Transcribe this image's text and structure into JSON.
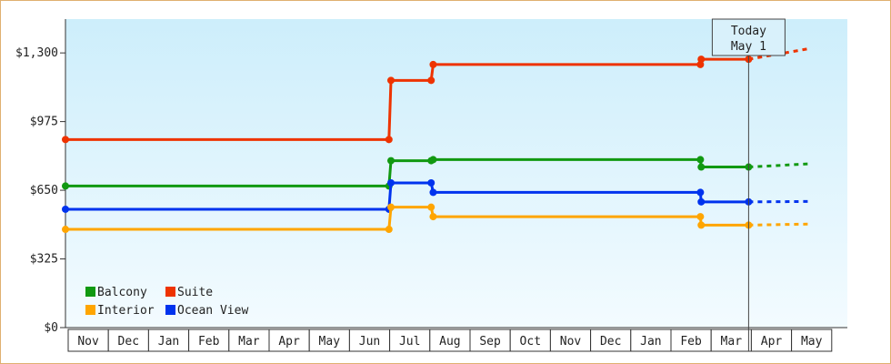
{
  "chart_data": {
    "type": "line",
    "step": true,
    "yticks": [
      0,
      325,
      650,
      975,
      1300
    ],
    "ytick_labels": [
      "$0",
      "$325",
      "$650",
      "$975",
      "$1,300"
    ],
    "ylim": [
      0,
      1460
    ],
    "x_categories": [
      "Nov",
      "Dec",
      "Jan",
      "Feb",
      "Mar",
      "Apr",
      "May",
      "Jun",
      "Jul",
      "Aug",
      "Sep",
      "Oct",
      "Nov",
      "Dec",
      "Jan",
      "Feb",
      "Mar",
      "Apr",
      "May"
    ],
    "today_label": [
      "Today",
      "May 1"
    ],
    "today_x": 17.0,
    "legend_position": "bottom-left",
    "grid": false,
    "series": [
      {
        "name": "Suite",
        "color": "#ee3300",
        "points": [
          [
            0,
            890
          ],
          [
            8.05,
            890
          ],
          [
            8.1,
            1170
          ],
          [
            9.1,
            1170
          ],
          [
            9.15,
            1245
          ],
          [
            15.8,
            1245
          ],
          [
            15.82,
            1270
          ],
          [
            17.0,
            1270
          ]
        ],
        "projection": [
          [
            17.0,
            1270
          ],
          [
            18.5,
            1320
          ]
        ]
      },
      {
        "name": "Balcony",
        "color": "#119911",
        "points": [
          [
            0,
            670
          ],
          [
            8.05,
            670
          ],
          [
            8.1,
            790
          ],
          [
            9.1,
            790
          ],
          [
            9.15,
            795
          ],
          [
            15.8,
            795
          ],
          [
            15.82,
            760
          ],
          [
            17.0,
            760
          ]
        ],
        "projection": [
          [
            17.0,
            760
          ],
          [
            18.5,
            775
          ]
        ]
      },
      {
        "name": "Ocean View",
        "color": "#0033ee",
        "points": [
          [
            0,
            560
          ],
          [
            8.05,
            560
          ],
          [
            8.1,
            685
          ],
          [
            9.1,
            685
          ],
          [
            9.15,
            640
          ],
          [
            15.8,
            640
          ],
          [
            15.82,
            595
          ],
          [
            17.0,
            595
          ]
        ],
        "projection": [
          [
            17.0,
            595
          ],
          [
            18.5,
            597
          ]
        ]
      },
      {
        "name": "Interior",
        "color": "#ffa500",
        "points": [
          [
            0,
            465
          ],
          [
            8.05,
            465
          ],
          [
            8.1,
            570
          ],
          [
            9.1,
            570
          ],
          [
            9.15,
            525
          ],
          [
            15.8,
            525
          ],
          [
            15.82,
            485
          ],
          [
            17.0,
            485
          ]
        ],
        "projection": [
          [
            17.0,
            485
          ],
          [
            18.5,
            490
          ]
        ]
      }
    ]
  }
}
